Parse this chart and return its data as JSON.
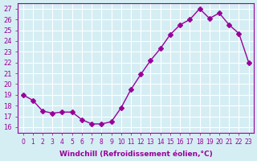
{
  "x": [
    0,
    1,
    2,
    3,
    4,
    5,
    6,
    7,
    8,
    9,
    10,
    11,
    12,
    13,
    14,
    15,
    16,
    17,
    18,
    19,
    20,
    21,
    22,
    23
  ],
  "y": [
    19,
    18.5,
    17.5,
    17.3,
    17.4,
    17.4,
    16.7,
    16.3,
    16.3,
    16.5,
    17.8,
    19.5,
    20.9,
    22.2,
    23.3,
    24.6,
    25.5,
    26.0,
    27.0,
    26.1,
    26.6,
    25.5,
    24.7,
    22.0
  ],
  "line_color": "#990099",
  "marker": "D",
  "marker_size": 3,
  "bg_color": "#d5eef4",
  "grid_color": "#ffffff",
  "xlabel": "Windchill (Refroidissement éolien,°C)",
  "ylabel": "",
  "ylim": [
    16,
    27
  ],
  "xlim": [
    0,
    23
  ],
  "yticks": [
    16,
    17,
    18,
    19,
    20,
    21,
    22,
    23,
    24,
    25,
    26,
    27
  ],
  "xticks": [
    0,
    1,
    2,
    3,
    4,
    5,
    6,
    7,
    8,
    9,
    10,
    11,
    12,
    13,
    14,
    15,
    16,
    17,
    18,
    19,
    20,
    21,
    22,
    23
  ],
  "tick_color": "#990099",
  "label_color": "#990099",
  "title": ""
}
